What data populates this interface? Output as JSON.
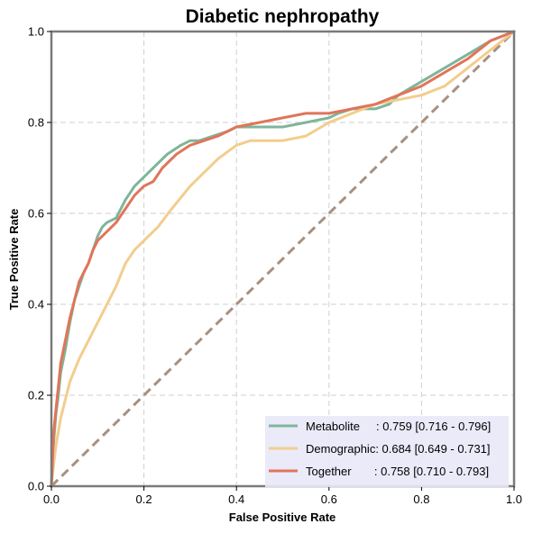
{
  "chart_data": {
    "type": "line",
    "title": "Diabetic nephropathy",
    "xlabel": "False Positive Rate",
    "ylabel": "True Positive Rate",
    "xlim": [
      0,
      1
    ],
    "ylim": [
      0,
      1
    ],
    "xticks": [
      "0.0",
      "0.2",
      "0.4",
      "0.6",
      "0.8",
      "1.0"
    ],
    "yticks": [
      "0.0",
      "0.2",
      "0.4",
      "0.6",
      "0.8",
      "1.0"
    ],
    "grid": true,
    "legend_position": "bottom-right",
    "colors": {
      "metabolite": "#7fb59a",
      "demographic": "#f2cd8d",
      "together": "#e0755a",
      "chance": "#a89080",
      "legend_bg": "#e8e8f8",
      "frame": "#7a7a7a"
    },
    "series": [
      {
        "name": "Metabolite",
        "legend_label": "Metabolite     : 0.759 [0.716 - 0.796]",
        "x": [
          0,
          0.005,
          0.01,
          0.015,
          0.02,
          0.03,
          0.04,
          0.05,
          0.06,
          0.07,
          0.08,
          0.09,
          0.1,
          0.11,
          0.12,
          0.14,
          0.16,
          0.18,
          0.2,
          0.22,
          0.25,
          0.28,
          0.3,
          0.32,
          0.35,
          0.38,
          0.4,
          0.45,
          0.5,
          0.55,
          0.6,
          0.62,
          0.65,
          0.7,
          0.73,
          0.75,
          0.8,
          0.85,
          0.9,
          0.95,
          1.0
        ],
        "y": [
          0,
          0.1,
          0.16,
          0.2,
          0.25,
          0.3,
          0.36,
          0.41,
          0.44,
          0.47,
          0.49,
          0.52,
          0.55,
          0.57,
          0.58,
          0.59,
          0.63,
          0.66,
          0.68,
          0.7,
          0.73,
          0.75,
          0.76,
          0.76,
          0.77,
          0.78,
          0.79,
          0.79,
          0.79,
          0.8,
          0.81,
          0.82,
          0.83,
          0.83,
          0.84,
          0.86,
          0.89,
          0.92,
          0.95,
          0.98,
          1.0
        ]
      },
      {
        "name": "Demographic",
        "legend_label": "Demographic: 0.684 [0.649 - 0.731]",
        "x": [
          0,
          0.005,
          0.01,
          0.015,
          0.02,
          0.03,
          0.04,
          0.06,
          0.08,
          0.1,
          0.12,
          0.14,
          0.16,
          0.18,
          0.2,
          0.23,
          0.26,
          0.3,
          0.33,
          0.36,
          0.4,
          0.43,
          0.46,
          0.5,
          0.55,
          0.6,
          0.65,
          0.7,
          0.75,
          0.8,
          0.85,
          0.9,
          0.95,
          1.0
        ],
        "y": [
          0,
          0.05,
          0.09,
          0.12,
          0.15,
          0.19,
          0.23,
          0.28,
          0.32,
          0.36,
          0.4,
          0.44,
          0.49,
          0.52,
          0.54,
          0.57,
          0.61,
          0.66,
          0.69,
          0.72,
          0.75,
          0.76,
          0.76,
          0.76,
          0.77,
          0.8,
          0.82,
          0.84,
          0.85,
          0.86,
          0.88,
          0.92,
          0.96,
          1.0
        ]
      },
      {
        "name": "Together",
        "legend_label": "Together       : 0.758 [0.710 - 0.793]",
        "x": [
          0,
          0.005,
          0.01,
          0.015,
          0.02,
          0.03,
          0.04,
          0.05,
          0.06,
          0.07,
          0.08,
          0.09,
          0.1,
          0.12,
          0.14,
          0.16,
          0.18,
          0.2,
          0.22,
          0.24,
          0.27,
          0.3,
          0.33,
          0.36,
          0.4,
          0.45,
          0.5,
          0.55,
          0.6,
          0.65,
          0.7,
          0.75,
          0.8,
          0.85,
          0.9,
          0.95,
          1.0
        ],
        "y": [
          0,
          0.12,
          0.17,
          0.22,
          0.27,
          0.32,
          0.37,
          0.41,
          0.45,
          0.47,
          0.49,
          0.52,
          0.54,
          0.56,
          0.58,
          0.61,
          0.64,
          0.66,
          0.67,
          0.7,
          0.73,
          0.75,
          0.76,
          0.77,
          0.79,
          0.8,
          0.81,
          0.82,
          0.82,
          0.83,
          0.84,
          0.86,
          0.88,
          0.91,
          0.94,
          0.98,
          1.0
        ]
      }
    ],
    "reference_line": {
      "x": [
        0,
        1
      ],
      "y": [
        0,
        1
      ],
      "style": "dashed"
    }
  }
}
